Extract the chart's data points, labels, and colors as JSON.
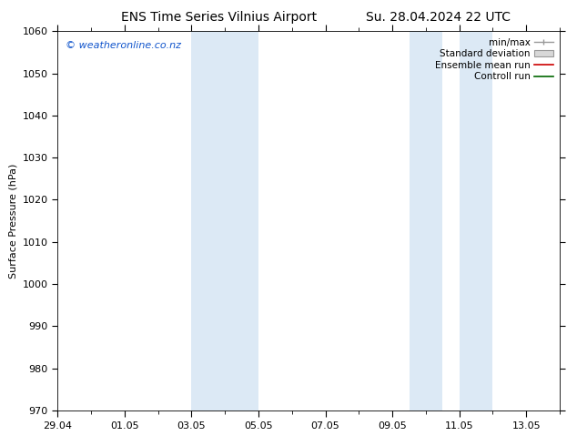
{
  "title_left": "ENS Time Series Vilnius Airport",
  "title_right": "Su. 28.04.2024 22 UTC",
  "ylabel": "Surface Pressure (hPa)",
  "ylim": [
    970,
    1060
  ],
  "yticks": [
    970,
    980,
    990,
    1000,
    1010,
    1020,
    1030,
    1040,
    1050,
    1060
  ],
  "xlim_start": 0.0,
  "xlim_end": 15.0,
  "xtick_positions": [
    0,
    2,
    4,
    6,
    8,
    10,
    12,
    14
  ],
  "xtick_labels": [
    "29.04",
    "01.05",
    "03.05",
    "05.05",
    "07.05",
    "09.05",
    "11.05",
    "13.05"
  ],
  "weekend_bands": [
    {
      "xstart": 4.0,
      "xend": 5.0
    },
    {
      "xstart": 5.0,
      "xend": 6.0
    },
    {
      "xstart": 10.5,
      "xend": 11.5
    },
    {
      "xstart": 12.0,
      "xend": 13.0
    }
  ],
  "shade_color": "#dce9f5",
  "shade_color2": "#ccddef",
  "watermark": "© weatheronline.co.nz",
  "legend_labels": [
    "min/max",
    "Standard deviation",
    "Ensemble mean run",
    "Controll run"
  ],
  "legend_colors": [
    "#aaaaaa",
    "#cccccc",
    "#ff0000",
    "#008000"
  ],
  "background_color": "#ffffff",
  "title_fontsize": 10,
  "axis_label_fontsize": 8,
  "tick_fontsize": 8,
  "legend_fontsize": 7.5,
  "watermark_fontsize": 8
}
